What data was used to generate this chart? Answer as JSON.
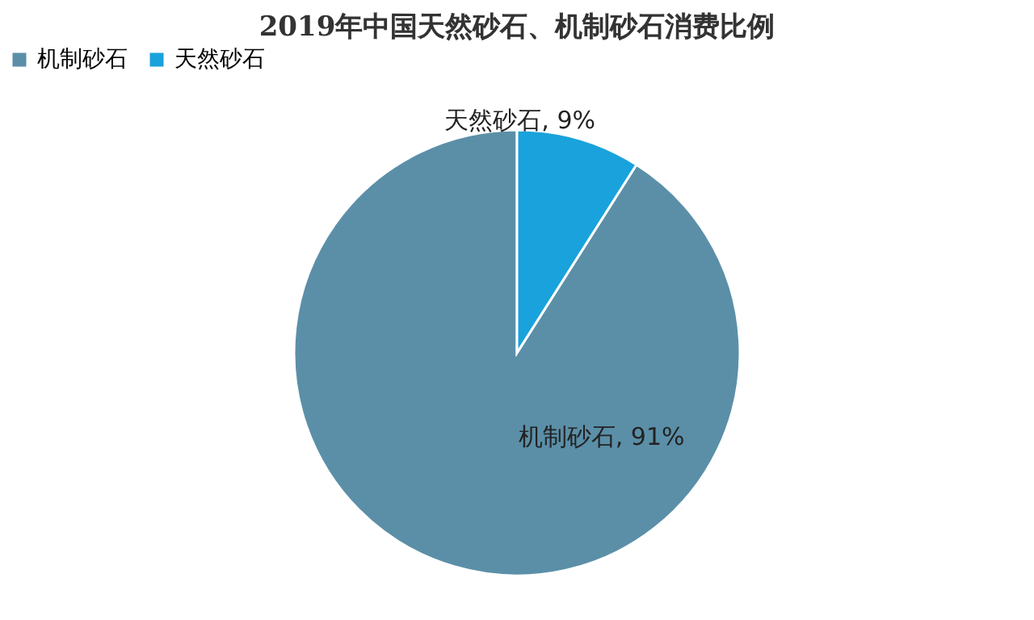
{
  "chart_data": {
    "type": "pie",
    "title": "2019年中国天然砂石、机制砂石消费比例",
    "categories": [
      "机制砂石",
      "天然砂石"
    ],
    "values": [
      91,
      9
    ],
    "colors": [
      "#5b8fa8",
      "#19a2dc"
    ],
    "value_labels": [
      "机制砂石, 91%",
      "天然砂石, 9%"
    ],
    "legend": "top"
  }
}
